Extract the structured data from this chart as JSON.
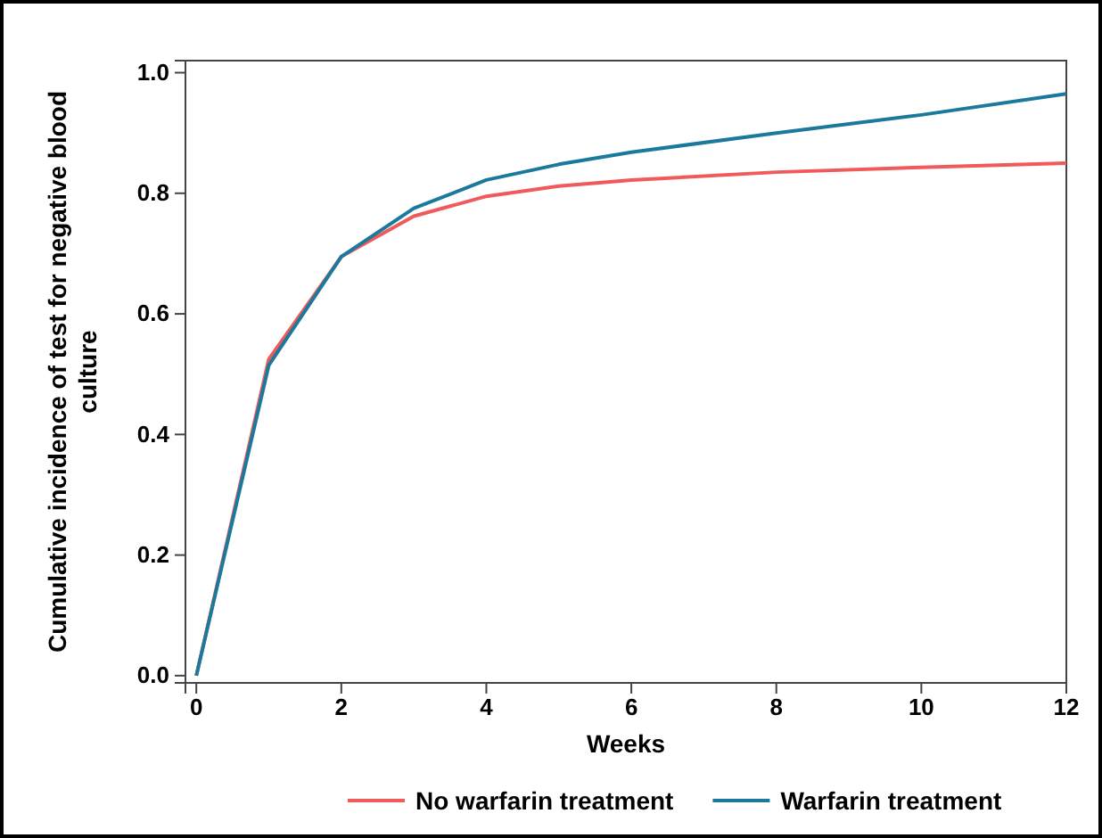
{
  "chart_data": {
    "type": "line",
    "xlabel": "Weeks",
    "ylabel": "Cumulative incidence of test for negative blood culture",
    "x": [
      0,
      1,
      2,
      3,
      4,
      5,
      6,
      8,
      10,
      12
    ],
    "series": [
      {
        "name": "No warfarin treatment",
        "color": "#f05a5b",
        "values": [
          0,
          0.525,
          0.695,
          0.762,
          0.795,
          0.812,
          0.822,
          0.835,
          0.843,
          0.85
        ]
      },
      {
        "name": "Warfarin treatment",
        "color": "#1b7a9c",
        "values": [
          0,
          0.515,
          0.695,
          0.775,
          0.822,
          0.848,
          0.868,
          0.9,
          0.93,
          0.965
        ]
      }
    ],
    "xlim": [
      -0.15,
      12
    ],
    "ylim": [
      -0.012,
      1.02
    ],
    "xticks": [
      0,
      2,
      4,
      6,
      8,
      10,
      12
    ],
    "yticks": [
      {
        "value": 0,
        "label": "0.0"
      },
      {
        "value": 0.2,
        "label": "0.2"
      },
      {
        "value": 0.4,
        "label": "0.4"
      },
      {
        "value": 0.6,
        "label": "0.6"
      },
      {
        "value": 0.8,
        "label": "0.8"
      },
      {
        "value": 1.0,
        "label": "1.0"
      }
    ],
    "legend": "bottom",
    "grid": false,
    "marker": "none",
    "line_style": "solid"
  }
}
